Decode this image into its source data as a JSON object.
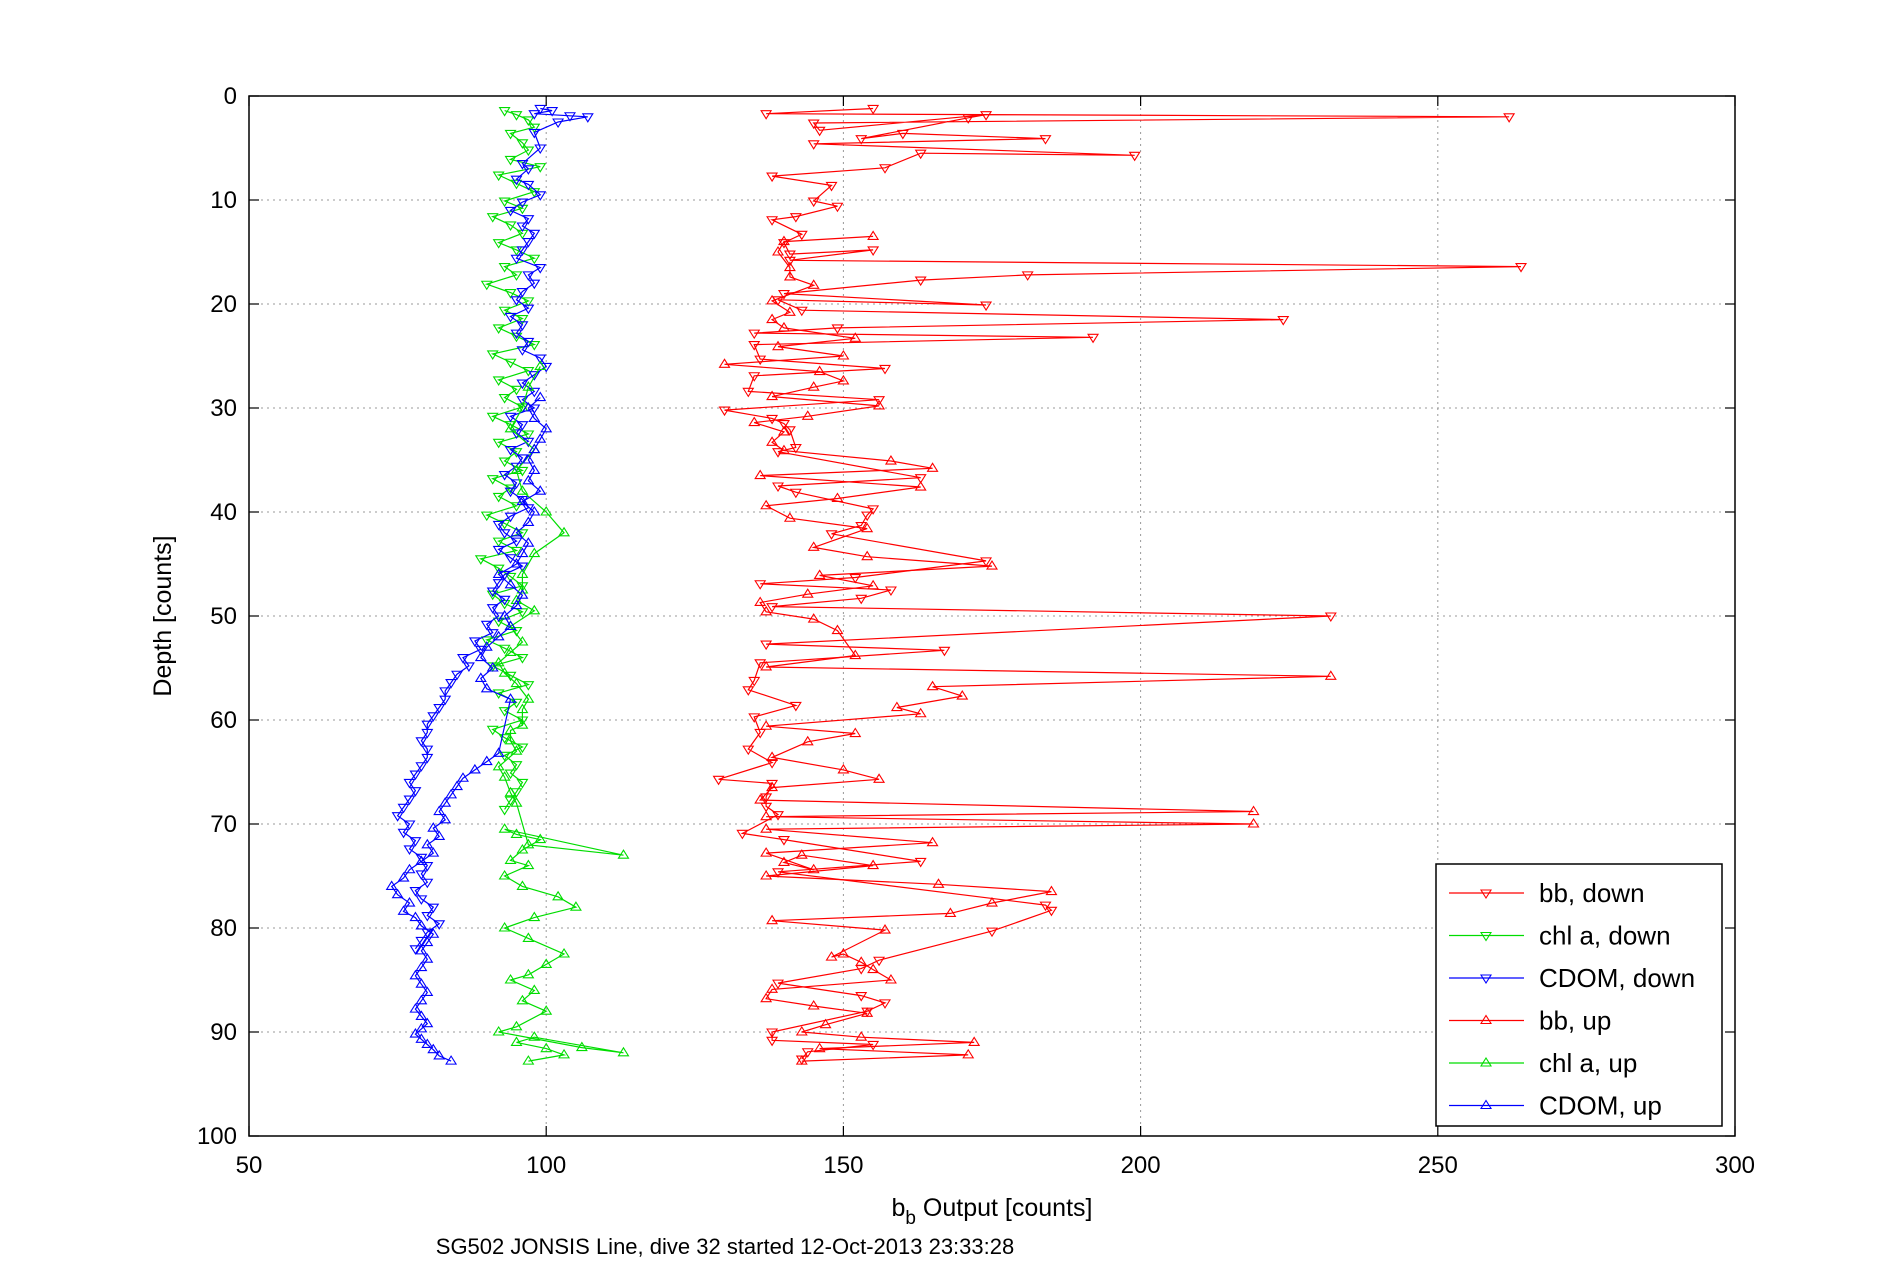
{
  "chart_data": {
    "type": "line",
    "xlabel": "b",
    "xlabel_sub": "b",
    "xlabel_rest": " Output [counts]",
    "ylabel": "Depth [counts]",
    "subtitle": "SG502 JONSIS Line, dive 32 started 12-Oct-2013 23:33:28",
    "xlim": [
      50,
      300
    ],
    "ylim": [
      0,
      100
    ],
    "y_reversed": true,
    "grid": true,
    "legend_position": "bottom-right",
    "xticks": [
      "50",
      "100",
      "150",
      "200",
      "250",
      "300"
    ],
    "yticks": [
      "0",
      "10",
      "20",
      "30",
      "40",
      "50",
      "60",
      "70",
      "80",
      "90",
      "100"
    ],
    "colors": {
      "bb": "#ff0000",
      "chl": "#00dd00",
      "cdom": "#0000ff",
      "grid": "#999999"
    },
    "series": [
      {
        "name": "bb, down",
        "color": "#ff0000",
        "marker": "triangle-down",
        "x": [
          155,
          137,
          262,
          145,
          146,
          174,
          171,
          153,
          160,
          184,
          145,
          199,
          163,
          157,
          138,
          148,
          145,
          149,
          142,
          138,
          143,
          140,
          141,
          155,
          141,
          264,
          181,
          163,
          140,
          174,
          139,
          143,
          224,
          149,
          135,
          192,
          135,
          136,
          157,
          135,
          134,
          156,
          130,
          138,
          140,
          141,
          142,
          139,
          163,
          139,
          142,
          155,
          154,
          153,
          148,
          174,
          152,
          136,
          158,
          153,
          138,
          232,
          137,
          167,
          136,
          135,
          134,
          142,
          135,
          136,
          134,
          138,
          129,
          138,
          137,
          137,
          139,
          133,
          140,
          163,
          139,
          184,
          185,
          175,
          156,
          153,
          139,
          153,
          157,
          154,
          138,
          138,
          155,
          144,
          143
        ],
        "y": [
          1.2,
          1.7,
          2.0,
          2.6,
          3.3,
          1.8,
          2.1,
          4.1,
          3.6,
          4.1,
          4.6,
          5.7,
          5.5,
          6.9,
          7.7,
          8.6,
          10.1,
          10.6,
          11.6,
          11.9,
          13.3,
          14.1,
          15.2,
          14.8,
          15.8,
          16.4,
          17.2,
          17.7,
          19.0,
          20.1,
          19.6,
          20.6,
          21.5,
          22.3,
          22.8,
          23.2,
          23.9,
          25.3,
          26.2,
          26.9,
          28.4,
          29.2,
          30.2,
          31.0,
          31.5,
          32.1,
          33.8,
          34.2,
          36.7,
          37.5,
          38.1,
          39.7,
          40.3,
          41.3,
          42.1,
          44.7,
          46.3,
          46.9,
          47.5,
          48.3,
          49.1,
          50.0,
          52.7,
          53.3,
          54.5,
          56.2,
          57.1,
          58.6,
          59.7,
          61.2,
          62.8,
          64.1,
          65.7,
          66.1,
          67.4,
          68.3,
          69.1,
          70.9,
          71.5,
          73.6,
          74.6,
          77.8,
          78.3,
          80.3,
          83.1,
          83.9,
          85.3,
          86.5,
          87.2,
          88.0,
          90.0,
          90.8,
          91.2,
          91.9,
          92.6
        ]
      },
      {
        "name": "chl a, down",
        "color": "#00dd00",
        "marker": "triangle-down",
        "x": [
          93,
          95,
          97,
          98,
          94,
          96,
          97,
          94,
          99,
          92,
          95,
          98,
          93,
          96,
          91,
          94,
          96,
          92,
          95,
          98,
          93,
          95,
          90,
          94,
          97,
          93,
          96,
          92,
          95,
          98,
          91,
          94,
          97,
          92,
          95,
          93,
          96,
          91,
          94,
          97,
          92,
          95,
          93,
          96,
          91,
          94,
          92,
          95,
          90,
          93,
          96,
          92,
          95,
          89,
          92,
          94,
          96,
          91,
          93,
          96,
          92,
          95,
          90,
          93,
          96,
          91,
          94,
          97,
          92,
          95,
          93,
          96,
          91,
          93,
          96,
          93,
          95,
          94,
          96,
          95,
          94,
          93
        ],
        "y": [
          1.4,
          1.8,
          2.3,
          3.0,
          3.6,
          4.5,
          5.2,
          6.1,
          6.8,
          7.6,
          8.4,
          9.2,
          10.1,
          10.8,
          11.6,
          12.4,
          13.2,
          14.1,
          14.8,
          15.6,
          16.4,
          17.2,
          18.1,
          18.9,
          19.7,
          20.6,
          21.4,
          22.3,
          23.1,
          23.9,
          24.8,
          25.6,
          26.4,
          27.3,
          28.2,
          29.0,
          29.9,
          30.8,
          31.6,
          32.5,
          33.3,
          34.2,
          35.1,
          36.0,
          36.8,
          37.7,
          38.5,
          39.4,
          40.3,
          41.1,
          42.0,
          42.8,
          43.7,
          44.5,
          45.4,
          46.2,
          47.1,
          47.9,
          48.8,
          49.6,
          50.5,
          51.4,
          52.3,
          53.1,
          54.0,
          54.8,
          55.7,
          56.6,
          57.4,
          58.3,
          59.1,
          60.0,
          60.9,
          61.7,
          62.6,
          63.4,
          64.3,
          65.1,
          66.0,
          66.9,
          67.7,
          68.6
        ]
      },
      {
        "name": "CDOM, down",
        "color": "#0000ff",
        "marker": "triangle-down",
        "x": [
          99,
          101,
          98,
          104,
          107,
          102,
          98,
          99,
          96,
          97,
          95,
          97,
          99,
          96,
          94,
          97,
          96,
          98,
          97,
          96,
          95,
          99,
          97,
          98,
          96,
          95,
          97,
          94,
          96,
          95,
          97,
          96,
          99,
          100,
          98,
          96,
          98,
          96,
          98,
          94,
          96,
          95,
          97,
          94,
          96,
          95,
          93,
          95,
          94,
          96,
          97,
          94,
          92,
          93,
          95,
          92,
          94,
          96,
          93,
          92,
          91,
          93,
          91,
          92,
          90,
          91,
          88,
          89,
          86,
          87,
          85,
          84,
          83,
          83,
          82,
          81,
          80,
          80,
          79,
          80,
          80,
          79,
          78,
          77,
          78,
          77,
          76,
          75,
          77,
          76,
          78,
          77,
          79,
          80,
          79,
          80,
          78,
          79,
          81,
          80,
          82,
          80,
          79,
          78
        ],
        "y": [
          1.2,
          1.4,
          1.7,
          1.9,
          2.0,
          2.5,
          3.5,
          5.0,
          6.5,
          7.0,
          8.0,
          8.5,
          9.5,
          10.2,
          11.0,
          11.8,
          12.5,
          13.2,
          14.0,
          14.8,
          15.6,
          16.5,
          17.2,
          18.0,
          18.8,
          19.6,
          20.4,
          21.2,
          22.0,
          22.8,
          23.6,
          24.4,
          25.2,
          26.0,
          26.8,
          27.6,
          28.4,
          29.2,
          30.0,
          30.8,
          31.6,
          32.4,
          33.2,
          34.0,
          34.8,
          35.6,
          36.4,
          37.2,
          38.0,
          38.8,
          39.6,
          40.4,
          41.2,
          42.0,
          42.8,
          43.6,
          44.4,
          45.2,
          46.0,
          46.8,
          47.6,
          48.4,
          49.2,
          50.0,
          50.8,
          51.6,
          52.4,
          53.2,
          54.0,
          54.8,
          55.6,
          56.4,
          57.2,
          58.0,
          58.8,
          59.6,
          60.4,
          61.2,
          62.0,
          62.8,
          63.6,
          64.4,
          65.2,
          66.0,
          66.8,
          67.6,
          68.4,
          69.2,
          70.0,
          70.8,
          71.6,
          72.4,
          73.2,
          74.0,
          74.8,
          75.6,
          76.4,
          77.2,
          78.0,
          78.8,
          79.6,
          80.4,
          81.2,
          82.0
        ]
      },
      {
        "name": "bb, up",
        "color": "#ff0000",
        "marker": "triangle-up",
        "x": [
          143,
          171,
          146,
          172,
          153,
          143,
          147,
          154,
          145,
          137,
          138,
          158,
          155,
          153,
          150,
          148,
          157,
          138,
          168,
          175,
          185,
          166,
          137,
          155,
          143,
          140,
          145,
          137,
          165,
          137,
          219,
          137,
          219,
          136,
          138,
          156,
          150,
          138,
          144,
          152,
          137,
          163,
          159,
          170,
          165,
          232,
          137,
          152,
          149,
          145,
          137,
          136,
          144,
          155,
          146,
          175,
          154,
          145,
          154,
          141,
          137,
          149,
          163,
          136,
          165,
          158,
          140,
          138,
          140,
          135,
          144,
          156,
          138,
          145,
          150,
          146,
          130,
          150,
          139,
          152,
          140,
          138,
          141,
          138,
          145,
          141,
          141,
          139,
          140,
          155
        ],
        "y": [
          92.8,
          92.2,
          91.6,
          91.0,
          90.5,
          90.0,
          89.3,
          88.2,
          87.5,
          86.8,
          85.9,
          85.0,
          84.0,
          83.3,
          82.5,
          82.8,
          80.2,
          79.3,
          78.6,
          77.6,
          76.5,
          75.8,
          75.0,
          74.0,
          73.0,
          73.7,
          74.4,
          72.8,
          71.8,
          70.5,
          70.0,
          69.3,
          68.8,
          67.7,
          66.5,
          65.7,
          64.8,
          63.6,
          62.1,
          61.3,
          60.6,
          59.4,
          58.8,
          57.7,
          56.8,
          55.8,
          54.9,
          53.8,
          51.4,
          50.3,
          49.6,
          48.7,
          47.9,
          47.1,
          46.1,
          45.2,
          44.3,
          43.4,
          41.6,
          40.6,
          39.4,
          38.7,
          37.6,
          36.5,
          35.8,
          35.1,
          34.1,
          33.3,
          32.3,
          31.4,
          30.8,
          29.8,
          28.9,
          28.0,
          27.4,
          26.5,
          25.8,
          25.0,
          24.1,
          23.3,
          22.3,
          21.5,
          20.8,
          19.7,
          18.2,
          17.4,
          16.5,
          15.0,
          14.0,
          13.5
        ]
      },
      {
        "name": "chl a, up",
        "color": "#00dd00",
        "marker": "triangle-up",
        "x": [
          97,
          103,
          100,
          95,
          98,
          113,
          106,
          92,
          95,
          100,
          96,
          98,
          94,
          97,
          100,
          103,
          97,
          93,
          98,
          105,
          102,
          96,
          93,
          97,
          94,
          96,
          99,
          95,
          93,
          113,
          97,
          95,
          94,
          93,
          92,
          95,
          94,
          94,
          96,
          96,
          97,
          95,
          93,
          92,
          94,
          96,
          94,
          98,
          95,
          96,
          96,
          98,
          103,
          100,
          96,
          95,
          98,
          94,
          96,
          97,
          99
        ],
        "y": [
          92.8,
          92.2,
          91.6,
          91.0,
          90.5,
          92.0,
          91.5,
          90.0,
          89.5,
          88.0,
          87.0,
          86.0,
          85.0,
          84.5,
          83.5,
          82.5,
          81.0,
          80.0,
          79.0,
          78.0,
          77.0,
          76.0,
          75.0,
          74.0,
          73.5,
          72.5,
          71.5,
          71.0,
          70.5,
          73.0,
          72.0,
          68.0,
          67.0,
          65.5,
          64.5,
          63.0,
          62.0,
          61.0,
          60.5,
          59.0,
          58.0,
          56.5,
          55.5,
          54.5,
          53.5,
          52.5,
          51.0,
          49.5,
          48.5,
          47.5,
          46.0,
          44.0,
          42.0,
          40.0,
          38.0,
          36.0,
          34.0,
          32.0,
          30.0,
          28.0,
          26.0
        ]
      },
      {
        "name": "CDOM, up",
        "color": "#0000ff",
        "marker": "triangle-up",
        "x": [
          84,
          82,
          81,
          80,
          79,
          78,
          79,
          80,
          79,
          78,
          79,
          80,
          79,
          78,
          79,
          80,
          79,
          80,
          81,
          79,
          78,
          76,
          77,
          75,
          74,
          76,
          77,
          79,
          81,
          80,
          82,
          81,
          83,
          82,
          83,
          84,
          85,
          86,
          88,
          90,
          92,
          94,
          90,
          89,
          91,
          89,
          90,
          92,
          94,
          93,
          95,
          96,
          94,
          92,
          95,
          96,
          97,
          95,
          97,
          98,
          96,
          99,
          97,
          98,
          97,
          98,
          99,
          100,
          98,
          97,
          99
        ],
        "y": [
          92.8,
          92.3,
          91.7,
          91.2,
          90.7,
          90.2,
          89.7,
          89.2,
          88.5,
          87.8,
          87.0,
          86.2,
          85.4,
          84.6,
          83.8,
          83.0,
          82.2,
          81.4,
          80.6,
          79.8,
          79.0,
          78.4,
          77.6,
          76.8,
          76.0,
          75.2,
          74.4,
          73.6,
          72.8,
          72.0,
          71.2,
          70.4,
          69.6,
          68.8,
          68.0,
          67.2,
          66.4,
          65.6,
          64.8,
          64.0,
          63.2,
          58.0,
          57.0,
          56.0,
          55.0,
          54.0,
          53.0,
          52.0,
          51.0,
          50.0,
          49.0,
          48.0,
          47.0,
          46.0,
          45.0,
          44.0,
          43.0,
          42.0,
          41.0,
          40.0,
          39.0,
          38.0,
          37.0,
          36.0,
          35.0,
          34.0,
          33.0,
          32.0,
          31.0,
          30.0,
          29.0
        ]
      }
    ]
  }
}
